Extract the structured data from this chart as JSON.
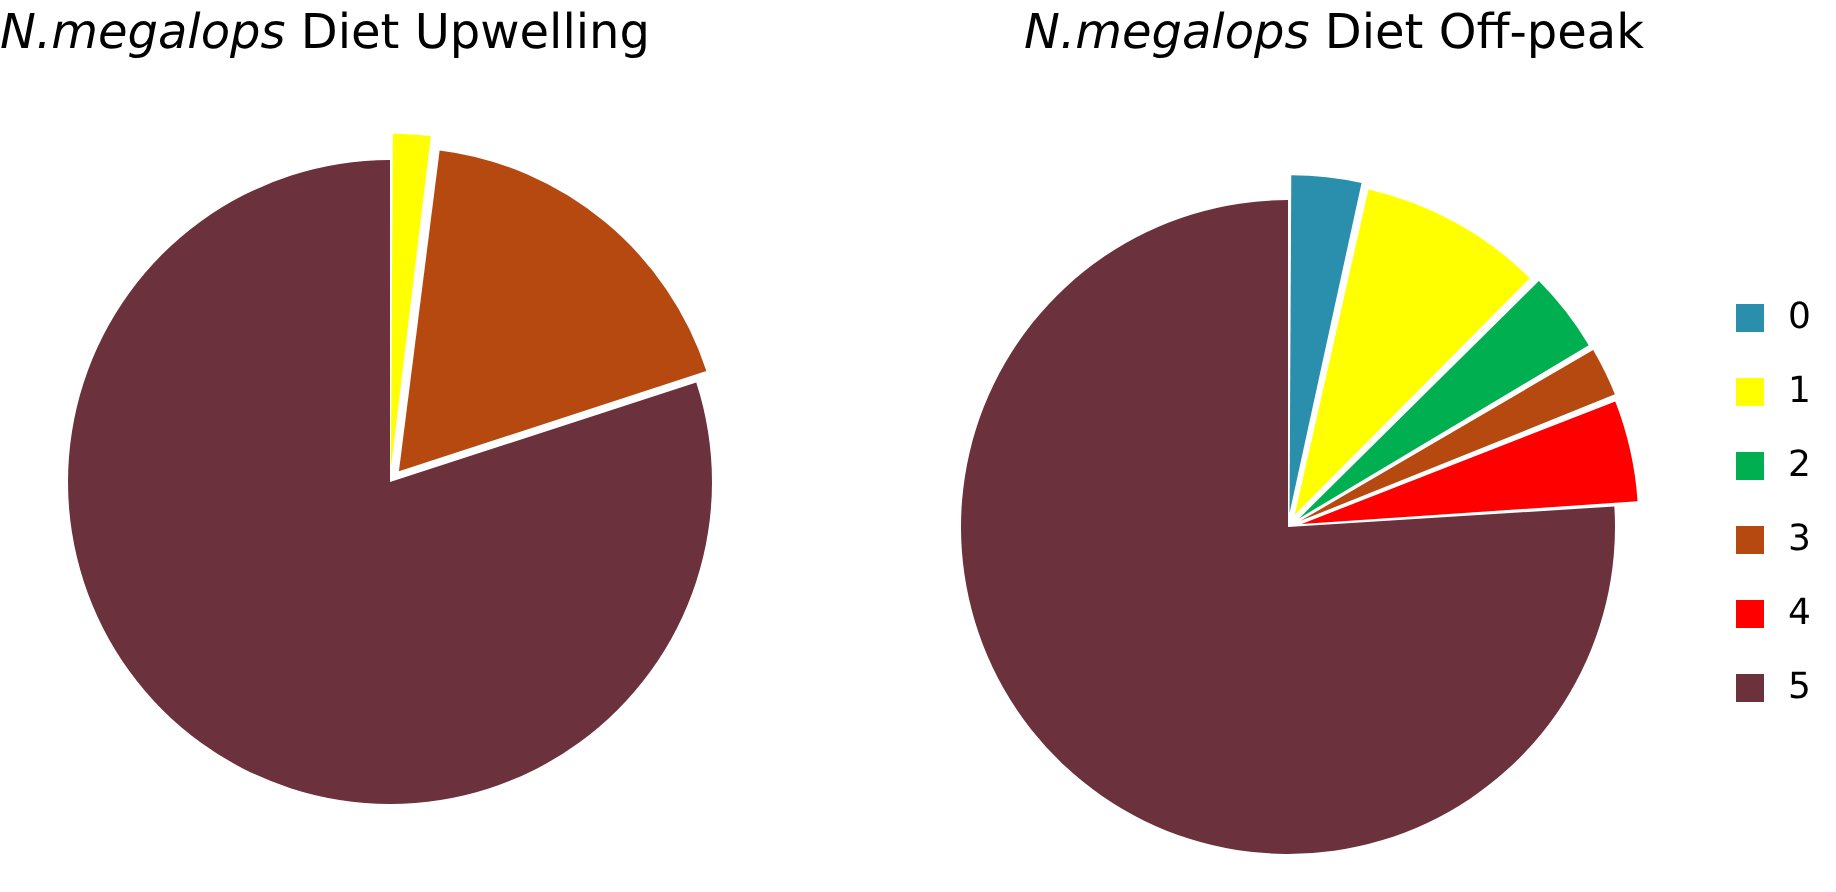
{
  "chart_data": [
    {
      "type": "pie",
      "title": "N.megalops Diet Upwelling",
      "categories": [
        null,
        null,
        null,
        null,
        null,
        null
      ],
      "values": [
        0,
        2,
        0,
        18,
        0,
        80
      ],
      "colors": [
        "#2a8ead",
        "#ffff00",
        "#00b050",
        "#b5490f",
        "#ff0000",
        "#6b313d"
      ],
      "legend": false
    },
    {
      "type": "pie",
      "title": "N.megalops Diet Off-peak",
      "categories": [
        "0",
        "1",
        "2",
        "3",
        "4",
        "5"
      ],
      "values": [
        3.5,
        9,
        4,
        2.5,
        5,
        76
      ],
      "colors": [
        "#2a8ead",
        "#ffff00",
        "#00b050",
        "#b5490f",
        "#ff0000",
        "#6b313d"
      ],
      "legend": "right"
    }
  ]
}
